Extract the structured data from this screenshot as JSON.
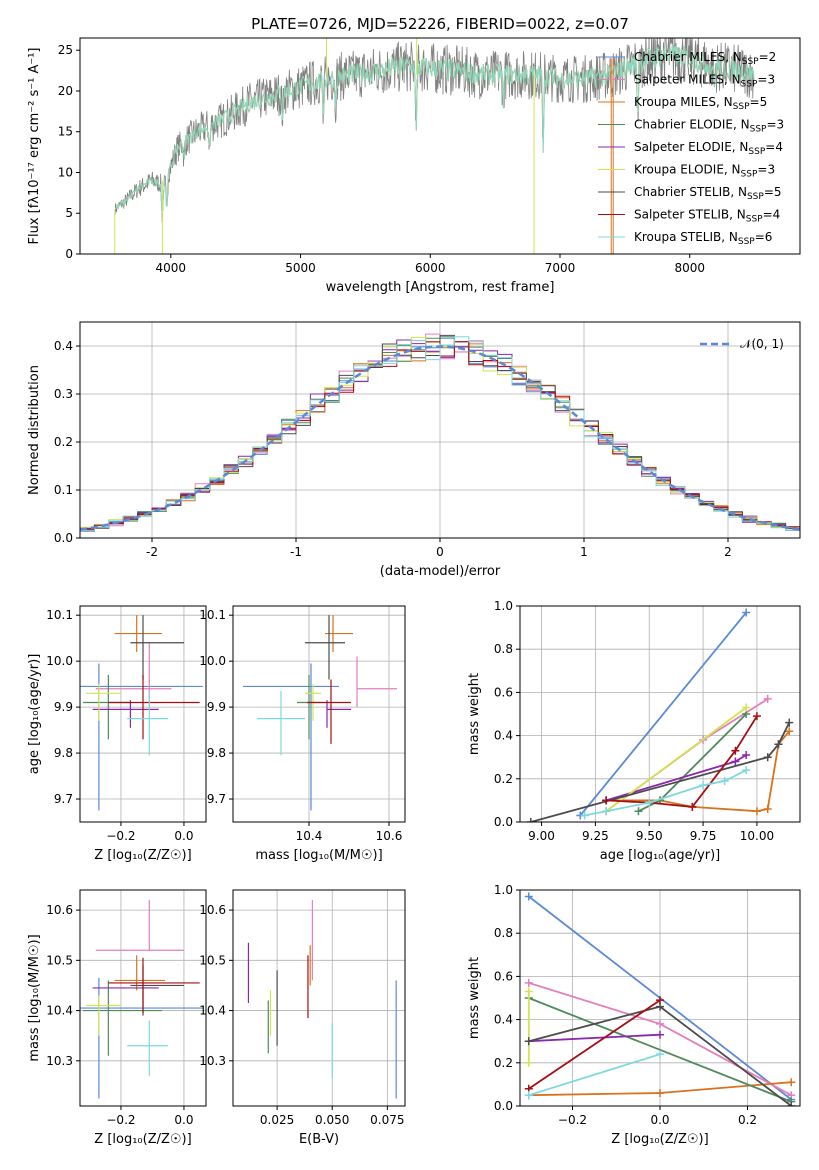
{
  "figure": {
    "title": "PLATE=0726, MJD=52226, FIBERID=0022, z=0.07"
  },
  "colors": {
    "chabrier_miles": "#5b8ad6",
    "salpeter_miles": "#e37fbe",
    "kroupa_miles": "#d9721f",
    "chabrier_elodie": "#4f8a5b",
    "salpeter_elodie": "#8b27ae",
    "kroupa_elodie": "#d1e44f",
    "chabrier_stelib": "#4c4c4c",
    "salpeter_stelib": "#a50f12",
    "kroupa_stelib": "#7dd8de",
    "data": "#808080",
    "normal": "#5b8ad6",
    "grid": "#b0b0b0"
  },
  "chart_data": [
    {
      "id": "spectrum",
      "type": "line",
      "title": "PLATE=0726, MJD=52226, FIBERID=0022, z=0.07",
      "xlabel": "wavelength [Angstrom, rest frame]",
      "ylabel": "Flux [fλ10⁻¹⁷ erg cm⁻² s⁻¹ A⁻¹]",
      "xlim": [
        3300,
        8850
      ],
      "ylim": [
        0,
        26.5
      ],
      "xticks": [
        4000,
        5000,
        6000,
        7000,
        8000
      ],
      "yticks": [
        0,
        5,
        10,
        15,
        20,
        25
      ],
      "grid": false,
      "legend_position": "right",
      "continuum": {
        "x": [
          3570,
          3650,
          3750,
          3850,
          3950,
          4050,
          4200,
          4400,
          4600,
          4800,
          5000,
          5200,
          5400,
          5600,
          5800,
          6000,
          6200,
          6400,
          6600,
          6800,
          7000,
          7200,
          7400,
          7600,
          7800,
          8000,
          8200,
          8400,
          8500
        ],
        "y": [
          5.5,
          6.5,
          8.0,
          9.0,
          8.5,
          13.0,
          15.0,
          16.5,
          18.5,
          19.5,
          20.5,
          21.5,
          22.0,
          22.5,
          23.0,
          22.8,
          22.5,
          22.0,
          22.0,
          22.0,
          21.5,
          21.5,
          22.0,
          23.5,
          24.5,
          24.0,
          23.0,
          22.5,
          22.0
        ]
      },
      "legend": [
        {
          "label": "Chabrier MILES, N",
          "sub": "SSP",
          "count": "=2",
          "color_key": "chabrier_miles"
        },
        {
          "label": "Salpeter MILES, N",
          "sub": "SSP",
          "count": "=3",
          "color_key": "salpeter_miles"
        },
        {
          "label": "Kroupa MILES, N",
          "sub": "SSP",
          "count": "=5",
          "color_key": "kroupa_miles"
        },
        {
          "label": "Chabrier ELODIE, N",
          "sub": "SSP",
          "count": "=3",
          "color_key": "chabrier_elodie"
        },
        {
          "label": "Salpeter ELODIE, N",
          "sub": "SSP",
          "count": "=4",
          "color_key": "salpeter_elodie"
        },
        {
          "label": "Kroupa ELODIE, N",
          "sub": "SSP",
          "count": "=3",
          "color_key": "kroupa_elodie"
        },
        {
          "label": "Chabrier STELIB, N",
          "sub": "SSP",
          "count": "=5",
          "color_key": "chabrier_stelib"
        },
        {
          "label": "Salpeter STELIB, N",
          "sub": "SSP",
          "count": "=4",
          "color_key": "salpeter_stelib"
        },
        {
          "label": "Kroupa STELIB, N",
          "sub": "SSP",
          "count": "=6",
          "color_key": "kroupa_stelib"
        }
      ]
    },
    {
      "id": "residuals",
      "type": "line",
      "xlabel": "(data-model)/error",
      "ylabel": "Normed distribution",
      "xlim": [
        -2.5,
        2.5
      ],
      "ylim": [
        0,
        0.45
      ],
      "xticks": [
        -2,
        -1,
        0,
        1,
        2
      ],
      "yticks": [
        0.0,
        0.1,
        0.2,
        0.3,
        0.4
      ],
      "grid": true,
      "legend": [
        {
          "label": "𝒩(0, 1)",
          "color_key": "normal",
          "style": "dashed"
        }
      ],
      "legend_position": "top-right",
      "bin_width": 0.1
    },
    {
      "id": "age_vs_z",
      "type": "scatter",
      "xlabel": "Z [log₁₀(Z/Z☉)]",
      "ylabel": "age  [log₁₀(age/yr)]",
      "xlim": [
        -0.33,
        0.07
      ],
      "ylim": [
        9.65,
        10.12
      ],
      "xticks": [
        -0.2,
        0.0
      ],
      "xticklabels": [
        "−0.2",
        "0.0"
      ],
      "yticks": [
        9.7,
        9.8,
        9.9,
        10.0,
        10.1
      ],
      "grid": true,
      "points": [
        {
          "color_key": "chabrier_miles",
          "x": -0.27,
          "y": 9.945,
          "xerr": [
            0.06,
            0.33
          ],
          "yerr": [
            0.27,
            0.05
          ]
        },
        {
          "color_key": "salpeter_miles",
          "x": -0.11,
          "y": 9.94,
          "xerr": [
            0.17,
            0.07
          ],
          "yerr": [
            0.04,
            0.1
          ]
        },
        {
          "color_key": "kroupa_miles",
          "x": -0.15,
          "y": 10.06,
          "xerr": [
            0.07,
            0.08
          ],
          "yerr": [
            0.04,
            0.04
          ]
        },
        {
          "color_key": "chabrier_elodie",
          "x": -0.24,
          "y": 9.91,
          "xerr": [
            0.08,
            0.07
          ],
          "yerr": [
            0.08,
            0.06
          ]
        },
        {
          "color_key": "salpeter_elodie",
          "x": -0.17,
          "y": 9.895,
          "xerr": [
            0.12,
            0.09
          ],
          "yerr": [
            0.04,
            0.02
          ]
        },
        {
          "color_key": "kroupa_elodie",
          "x": -0.27,
          "y": 9.93,
          "xerr": [
            0.04,
            0.07
          ],
          "yerr": [
            0.06,
            0.02
          ]
        },
        {
          "color_key": "chabrier_stelib",
          "x": -0.13,
          "y": 10.04,
          "xerr": [
            0.04,
            0.13
          ],
          "yerr": [
            0.08,
            0.06
          ]
        },
        {
          "color_key": "salpeter_stelib",
          "x": -0.13,
          "y": 9.91,
          "xerr": [
            0.11,
            0.18
          ],
          "yerr": [
            0.08,
            0.06
          ]
        },
        {
          "color_key": "kroupa_stelib",
          "x": -0.11,
          "y": 9.875,
          "xerr": [
            0.07,
            0.06
          ],
          "yerr": [
            0.08,
            0.06
          ]
        }
      ]
    },
    {
      "id": "age_vs_mass",
      "type": "scatter",
      "xlabel": "mass [log₁₀(M/M☉)]",
      "xlim": [
        10.21,
        10.64
      ],
      "ylim": [
        9.65,
        10.12
      ],
      "xticks": [
        10.4,
        10.6
      ],
      "yticks": [
        9.7,
        9.8,
        9.9,
        10.0,
        10.1
      ],
      "grid": true,
      "points": [
        {
          "color_key": "chabrier_miles",
          "x": 10.405,
          "y": 9.945,
          "xerr": [
            0.17,
            0.07
          ],
          "yerr": [
            0.27,
            0.05
          ]
        },
        {
          "color_key": "salpeter_miles",
          "x": 10.52,
          "y": 9.94,
          "xerr": [
            0.0,
            0.1
          ],
          "yerr": [
            0.04,
            0.07
          ]
        },
        {
          "color_key": "kroupa_miles",
          "x": 10.46,
          "y": 10.06,
          "xerr": [
            0.02,
            0.05
          ],
          "yerr": [
            0.04,
            0.04
          ]
        },
        {
          "color_key": "chabrier_elodie",
          "x": 10.4,
          "y": 9.91,
          "xerr": [
            0.03,
            0.03
          ],
          "yerr": [
            0.08,
            0.06
          ]
        },
        {
          "color_key": "salpeter_elodie",
          "x": 10.445,
          "y": 9.895,
          "xerr": [
            0.0,
            0.06
          ],
          "yerr": [
            0.04,
            0.02
          ]
        },
        {
          "color_key": "kroupa_elodie",
          "x": 10.41,
          "y": 9.93,
          "xerr": [
            0.02,
            0.02
          ],
          "yerr": [
            0.06,
            0.02
          ]
        },
        {
          "color_key": "chabrier_stelib",
          "x": 10.45,
          "y": 10.04,
          "xerr": [
            0.06,
            0.04
          ],
          "yerr": [
            0.08,
            0.06
          ]
        },
        {
          "color_key": "salpeter_stelib",
          "x": 10.455,
          "y": 9.91,
          "xerr": [
            0.06,
            0.05
          ],
          "yerr": [
            0.09,
            0.05
          ]
        },
        {
          "color_key": "kroupa_stelib",
          "x": 10.33,
          "y": 9.875,
          "xerr": [
            0.06,
            0.06
          ],
          "yerr": [
            0.08,
            0.06
          ]
        }
      ]
    },
    {
      "id": "weight_vs_age",
      "type": "line",
      "xlabel": "age  [log₁₀(age/yr)]",
      "ylabel": "mass weight",
      "xlim": [
        8.9,
        10.2
      ],
      "ylim": [
        0,
        1
      ],
      "xticks": [
        9.0,
        9.25,
        9.5,
        9.75,
        10.0
      ],
      "xticklabels": [
        "9.00",
        "9.25",
        "9.50",
        "9.75",
        "10.00"
      ],
      "yticks": [
        0.0,
        0.2,
        0.4,
        0.6,
        0.8,
        1.0
      ],
      "grid": true,
      "series": [
        {
          "color_key": "chabrier_miles",
          "x": [
            9.18,
            9.95
          ],
          "y": [
            0.03,
            0.97
          ]
        },
        {
          "color_key": "salpeter_miles",
          "x": [
            9.3,
            9.75,
            10.05
          ],
          "y": [
            0.05,
            0.38,
            0.57
          ]
        },
        {
          "color_key": "kroupa_miles",
          "x": [
            9.3,
            9.55,
            9.7,
            10.0,
            10.05,
            10.1,
            10.15
          ],
          "y": [
            0.1,
            0.1,
            0.07,
            0.05,
            0.06,
            0.36,
            0.42
          ]
        },
        {
          "color_key": "chabrier_elodie",
          "x": [
            9.45,
            9.55,
            9.95
          ],
          "y": [
            0.05,
            0.1,
            0.5
          ]
        },
        {
          "color_key": "salpeter_elodie",
          "x": [
            9.3,
            9.9,
            9.95
          ],
          "y": [
            0.1,
            0.28,
            0.31
          ]
        },
        {
          "color_key": "kroupa_elodie",
          "x": [
            9.3,
            9.95
          ],
          "y": [
            0.05,
            0.53
          ]
        },
        {
          "color_key": "chabrier_stelib",
          "x": [
            8.95,
            10.05,
            10.1,
            10.15
          ],
          "y": [
            0.0,
            0.3,
            0.36,
            0.46
          ]
        },
        {
          "color_key": "salpeter_stelib",
          "x": [
            9.3,
            9.5,
            9.7,
            9.9,
            10.0
          ],
          "y": [
            0.1,
            0.09,
            0.07,
            0.33,
            0.49
          ]
        },
        {
          "color_key": "kroupa_stelib",
          "x": [
            9.2,
            9.3,
            9.5,
            9.75,
            9.85,
            9.95
          ],
          "y": [
            0.03,
            0.05,
            0.09,
            0.17,
            0.19,
            0.24
          ]
        }
      ]
    },
    {
      "id": "mass_vs_z",
      "type": "scatter",
      "xlabel": "Z [log₁₀(Z/Z☉)]",
      "ylabel": "mass [log₁₀(M/M☉)]",
      "xlim": [
        -0.33,
        0.07
      ],
      "ylim": [
        10.21,
        10.64
      ],
      "xticks": [
        -0.2,
        0.0
      ],
      "xticklabels": [
        "−0.2",
        "0.0"
      ],
      "yticks": [
        10.3,
        10.4,
        10.5,
        10.6
      ],
      "grid": true,
      "points": [
        {
          "color_key": "chabrier_miles",
          "x": -0.27,
          "y": 10.405,
          "xerr": [
            0.06,
            0.33
          ],
          "yerr": [
            0.18,
            0.06
          ]
        },
        {
          "color_key": "salpeter_miles",
          "x": -0.11,
          "y": 10.52,
          "xerr": [
            0.17,
            0.11
          ],
          "yerr": [
            0.0,
            0.1
          ]
        },
        {
          "color_key": "kroupa_miles",
          "x": -0.15,
          "y": 10.46,
          "xerr": [
            0.07,
            0.09
          ],
          "yerr": [
            0.02,
            0.05
          ]
        },
        {
          "color_key": "chabrier_elodie",
          "x": -0.24,
          "y": 10.4,
          "xerr": [
            0.08,
            0.17
          ],
          "yerr": [
            0.09,
            0.06
          ]
        },
        {
          "color_key": "salpeter_elodie",
          "x": -0.17,
          "y": 10.445,
          "xerr": [
            0.12,
            0.09
          ],
          "yerr": [
            0.0,
            0.0
          ]
        },
        {
          "color_key": "kroupa_elodie",
          "x": -0.27,
          "y": 10.41,
          "xerr": [
            0.04,
            0.07
          ],
          "yerr": [
            0.06,
            0.02
          ]
        },
        {
          "color_key": "chabrier_stelib",
          "x": -0.13,
          "y": 10.45,
          "xerr": [
            0.04,
            0.13
          ],
          "yerr": [
            0.06,
            0.04
          ]
        },
        {
          "color_key": "salpeter_stelib",
          "x": -0.13,
          "y": 10.455,
          "xerr": [
            0.11,
            0.18
          ],
          "yerr": [
            0.06,
            0.05
          ]
        },
        {
          "color_key": "kroupa_stelib",
          "x": -0.11,
          "y": 10.33,
          "xerr": [
            0.07,
            0.06
          ],
          "yerr": [
            0.06,
            0.05
          ]
        }
      ]
    },
    {
      "id": "mass_vs_ebv",
      "type": "scatter",
      "xlabel": "E(B-V)",
      "xlim": [
        0.005,
        0.083
      ],
      "ylim": [
        10.21,
        10.64
      ],
      "xticks": [
        0.025,
        0.05,
        0.075
      ],
      "xticklabels": [
        "0.025",
        "0.050",
        "0.075"
      ],
      "yticks": [
        10.3,
        10.4,
        10.5,
        10.6
      ],
      "grid": true,
      "bars": [
        {
          "color_key": "salpeter_elodie",
          "x": 0.012,
          "y1": 10.415,
          "y2": 10.535
        },
        {
          "color_key": "chabrier_elodie",
          "x": 0.021,
          "y1": 10.315,
          "y2": 10.42
        },
        {
          "color_key": "kroupa_elodie",
          "x": 0.022,
          "y1": 10.35,
          "y2": 10.44
        },
        {
          "color_key": "chabrier_stelib",
          "x": 0.025,
          "y1": 10.33,
          "y2": 10.48
        },
        {
          "color_key": "salpeter_stelib",
          "x": 0.039,
          "y1": 10.385,
          "y2": 10.51
        },
        {
          "color_key": "kroupa_miles",
          "x": 0.04,
          "y1": 10.45,
          "y2": 10.53
        },
        {
          "color_key": "salpeter_miles",
          "x": 0.041,
          "y1": 10.46,
          "y2": 10.62
        },
        {
          "color_key": "kroupa_stelib",
          "x": 0.05,
          "y1": 10.265,
          "y2": 10.375
        },
        {
          "color_key": "chabrier_miles",
          "x": 0.079,
          "y1": 10.225,
          "y2": 10.46
        }
      ]
    },
    {
      "id": "weight_vs_z",
      "type": "line",
      "xlabel": "Z [log₁₀(Z/Z☉)]",
      "ylabel": "mass weight",
      "xlim": [
        -0.32,
        0.32
      ],
      "ylim": [
        0,
        1
      ],
      "xticks": [
        -0.2,
        0.0,
        0.2
      ],
      "xticklabels": [
        "−0.2",
        "0.0",
        "0.2"
      ],
      "yticks": [
        0.0,
        0.2,
        0.4,
        0.6,
        0.8,
        1.0
      ],
      "grid": true,
      "series": [
        {
          "color_key": "chabrier_miles",
          "x": [
            -0.3,
            0.3
          ],
          "y": [
            0.97,
            0.03
          ]
        },
        {
          "color_key": "salpeter_miles",
          "x": [
            -0.3,
            0.0,
            0.3
          ],
          "y": [
            0.57,
            0.38,
            0.05
          ]
        },
        {
          "color_key": "kroupa_miles",
          "x": [
            -0.3,
            0.0,
            0.3
          ],
          "y": [
            0.05,
            0.06,
            0.11
          ]
        },
        {
          "color_key": "chabrier_elodie",
          "x": [
            -0.3,
            0.3
          ],
          "y": [
            0.5,
            0.02
          ]
        },
        {
          "color_key": "salpeter_elodie",
          "x": [
            -0.3,
            0.0
          ],
          "y": [
            0.3,
            0.33
          ]
        },
        {
          "color_key": "kroupa_elodie",
          "x": [
            -0.3,
            -0.3
          ],
          "y": [
            0.2,
            0.53
          ]
        },
        {
          "color_key": "chabrier_stelib",
          "x": [
            -0.3,
            0.0,
            0.3
          ],
          "y": [
            0.3,
            0.46,
            0.0
          ]
        },
        {
          "color_key": "salpeter_stelib",
          "x": [
            -0.3,
            0.0
          ],
          "y": [
            0.08,
            0.49
          ]
        },
        {
          "color_key": "kroupa_stelib",
          "x": [
            -0.3,
            0.0
          ],
          "y": [
            0.05,
            0.24
          ]
        }
      ]
    }
  ]
}
